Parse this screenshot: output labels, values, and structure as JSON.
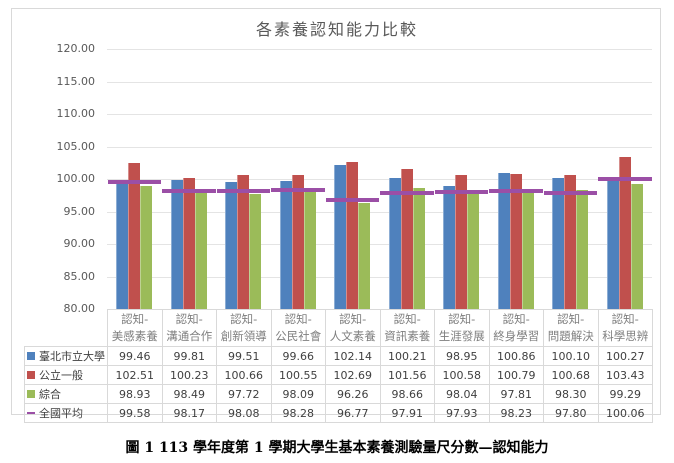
{
  "chart_data": {
    "type": "bar",
    "title": "各素養認知能力比較",
    "xlabel": "",
    "ylabel": "",
    "ylim": [
      80,
      120
    ],
    "yticks": [
      "120.00",
      "115.00",
      "110.00",
      "105.00",
      "100.00",
      "95.00",
      "90.00",
      "85.00",
      "80.00"
    ],
    "grid": true,
    "legend_position": "data-table",
    "categories": [
      "認知-美感素養",
      "認知-溝通合作",
      "認知-創新領導",
      "認知-公民社會",
      "認知-人文素養",
      "認知-資訊素養",
      "認知-生涯發展",
      "認知-終身學習",
      "認知-問題解決",
      "認知-科學思辨"
    ],
    "category_lines": [
      [
        "認知-",
        "美感素養"
      ],
      [
        "認知-",
        "溝通合作"
      ],
      [
        "認知-",
        "創新領導"
      ],
      [
        "認知-",
        "公民社會"
      ],
      [
        "認知-",
        "人文素養"
      ],
      [
        "認知-",
        "資訊素養"
      ],
      [
        "認知-",
        "生涯發展"
      ],
      [
        "認知-",
        "終身學習"
      ],
      [
        "認知-",
        "問題解決"
      ],
      [
        "認知-",
        "科學思辨"
      ]
    ],
    "series": [
      {
        "name": "臺北市立大學",
        "type": "bar",
        "color": "#4f81bd",
        "values": [
          99.46,
          99.81,
          99.51,
          99.66,
          102.14,
          100.21,
          98.95,
          100.86,
          100.1,
          100.27
        ],
        "labels": [
          "99.46",
          "99.81",
          "99.51",
          "99.66",
          "102.14",
          "100.21",
          "98.95",
          "100.86",
          "100.10",
          "100.27"
        ]
      },
      {
        "name": "公立一般",
        "type": "bar",
        "color": "#c0504d",
        "values": [
          102.51,
          100.23,
          100.66,
          100.55,
          102.69,
          101.56,
          100.58,
          100.79,
          100.68,
          103.43
        ],
        "labels": [
          "102.51",
          "100.23",
          "100.66",
          "100.55",
          "102.69",
          "101.56",
          "100.58",
          "100.79",
          "100.68",
          "103.43"
        ]
      },
      {
        "name": "綜合",
        "type": "bar",
        "color": "#9bbb59",
        "values": [
          98.93,
          98.49,
          97.72,
          98.09,
          96.26,
          98.66,
          98.04,
          97.81,
          98.3,
          99.29
        ],
        "labels": [
          "98.93",
          "98.49",
          "97.72",
          "98.09",
          "96.26",
          "98.66",
          "98.04",
          "97.81",
          "98.30",
          "99.29"
        ]
      },
      {
        "name": "全國平均",
        "type": "line-marker",
        "color": "#9b4fa6",
        "values": [
          99.58,
          98.17,
          98.08,
          98.28,
          96.77,
          97.91,
          97.93,
          98.23,
          97.8,
          100.06
        ],
        "labels": [
          "99.58",
          "98.17",
          "98.08",
          "98.28",
          "96.77",
          "97.91",
          "97.93",
          "98.23",
          "97.80",
          "100.06"
        ]
      }
    ]
  },
  "caption": "圖 1 113 學年度第 1 學期大學生基本素養測驗量尺分數—認知能力"
}
